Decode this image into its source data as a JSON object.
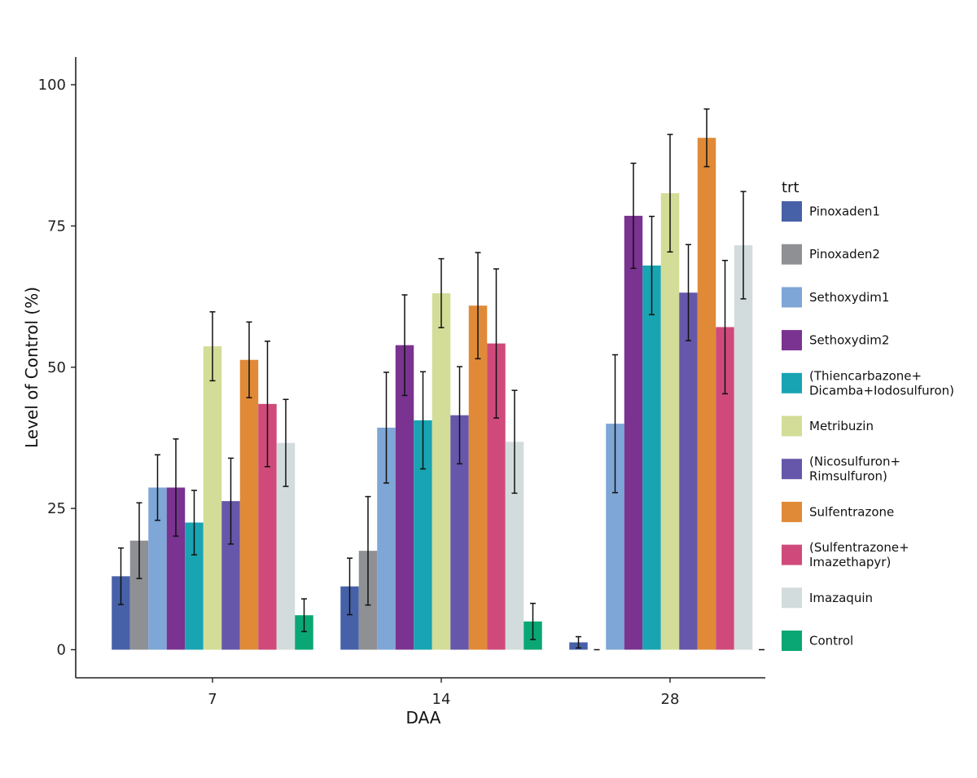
{
  "chart_data": {
    "type": "bar",
    "xlabel": "DAA",
    "ylabel": "Level of Control (%)",
    "ylim": [
      0,
      105
    ],
    "yticks": [
      0,
      25,
      50,
      75,
      100
    ],
    "categories": [
      "7",
      "14",
      "28"
    ],
    "grid": false,
    "error_bars": true,
    "legend": {
      "title": "trt",
      "placement": "right"
    },
    "series": [
      {
        "name": "Pinoxaden1",
        "lines": [
          "Pinoxaden1"
        ],
        "color": "#4761a8",
        "values": [
          13,
          11.2,
          1.3
        ],
        "errors": [
          5,
          5,
          1
        ]
      },
      {
        "name": "Pinoxaden2",
        "lines": [
          "Pinoxaden2"
        ],
        "color": "#8e9093",
        "values": [
          19.3,
          17.5,
          0
        ],
        "errors": [
          6.7,
          9.6,
          0
        ]
      },
      {
        "name": "Sethoxydim1",
        "lines": [
          "Sethoxydim1"
        ],
        "color": "#7ea6d6",
        "values": [
          28.7,
          39.3,
          40
        ],
        "errors": [
          5.8,
          9.8,
          12.2
        ]
      },
      {
        "name": "Sethoxydim2",
        "lines": [
          "Sethoxydim2"
        ],
        "color": "#7a3390",
        "values": [
          28.7,
          53.9,
          76.8
        ],
        "errors": [
          8.6,
          8.9,
          9.3
        ]
      },
      {
        "name": "(Thiencarbazone+ Dicamba+Iodosulfuron)",
        "lines": [
          "(Thiencarbazone+",
          "Dicamba+Iodosulfuron)"
        ],
        "color": "#18a4b2",
        "values": [
          22.5,
          40.6,
          68
        ],
        "errors": [
          5.7,
          8.6,
          8.7
        ]
      },
      {
        "name": "Metribuzin",
        "lines": [
          "Metribuzin"
        ],
        "color": "#d3dd97",
        "values": [
          53.7,
          63.1,
          80.8
        ],
        "errors": [
          6.1,
          6.1,
          10.4
        ]
      },
      {
        "name": "(Nicosulfuron+ Rimsulfuron)",
        "lines": [
          "(Nicosulfuron+",
          "Rimsulfuron)"
        ],
        "color": "#6657aa",
        "values": [
          26.3,
          41.5,
          63.2
        ],
        "errors": [
          7.6,
          8.6,
          8.5
        ]
      },
      {
        "name": "Sulfentrazone",
        "lines": [
          "Sulfentrazone"
        ],
        "color": "#e08a37",
        "values": [
          51.3,
          60.9,
          90.6
        ],
        "errors": [
          6.7,
          9.4,
          5.1
        ]
      },
      {
        "name": "(Sulfentrazone+ Imazethapyr)",
        "lines": [
          "(Sulfentrazone+",
          "Imazethapyr)"
        ],
        "color": "#cf4a7a",
        "values": [
          43.5,
          54.2,
          57.1
        ],
        "errors": [
          11.1,
          13.2,
          11.8
        ]
      },
      {
        "name": "Imazaquin",
        "lines": [
          "Imazaquin"
        ],
        "color": "#d3dcdc",
        "values": [
          36.6,
          36.8,
          71.6
        ],
        "errors": [
          7.7,
          9.1,
          9.5
        ]
      },
      {
        "name": "Control",
        "lines": [
          "Control"
        ],
        "color": "#0aa774",
        "values": [
          6.1,
          5,
          0
        ],
        "errors": [
          2.9,
          3.2,
          0
        ]
      }
    ]
  }
}
